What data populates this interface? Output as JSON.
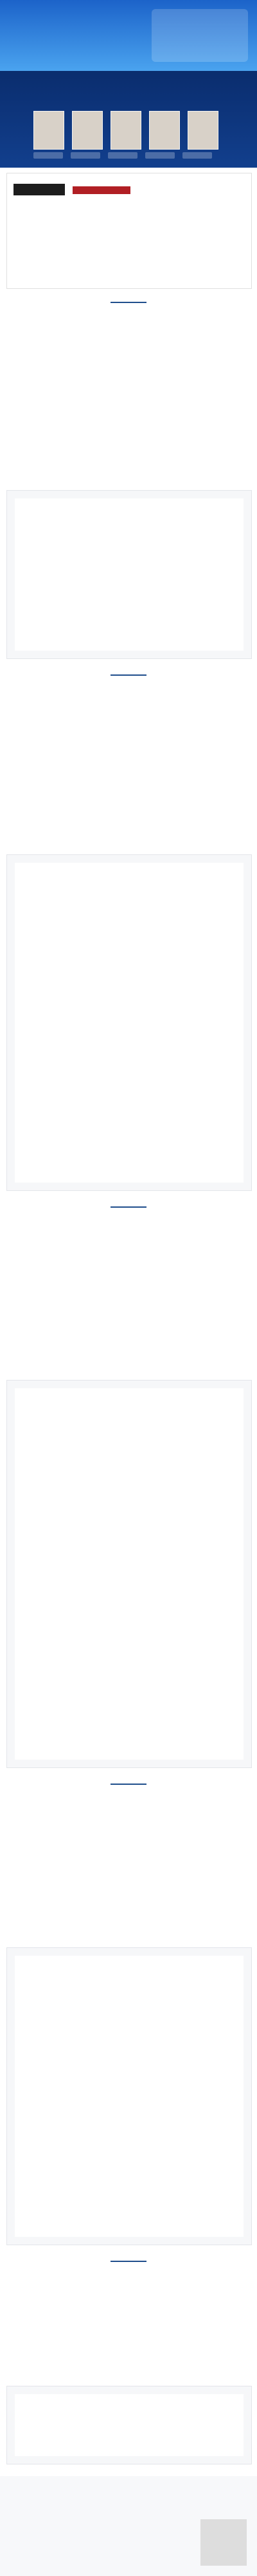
{
  "banner": {
    "title": "",
    "subtitle": ""
  },
  "conference": {
    "title": ""
  },
  "paper": {
    "title": "",
    "authors": ""
  },
  "sections": {
    "s1": {
      "title": "",
      "text": ""
    },
    "s2": {
      "title": "",
      "text": ""
    },
    "s3": {
      "title": "",
      "text": ""
    },
    "s4": {
      "title": "",
      "text": ""
    },
    "s5": {
      "title": "",
      "text": ""
    }
  },
  "figures": {
    "f1": {
      "caption": ""
    },
    "f2": {
      "caption": ""
    },
    "f3": {
      "caption": ""
    },
    "f4": {
      "caption": ""
    },
    "f5": {
      "caption": ""
    }
  },
  "footer": {
    "text": ""
  }
}
